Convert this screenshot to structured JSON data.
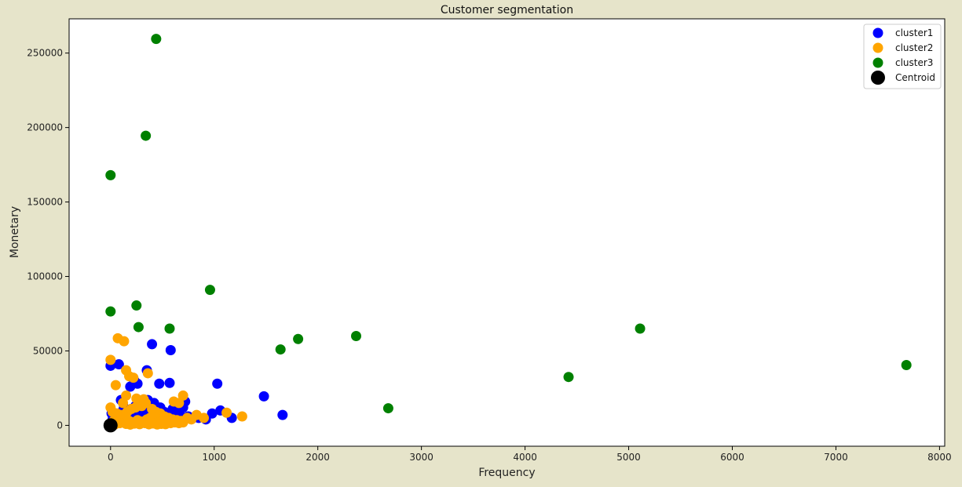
{
  "chart_data": {
    "type": "scatter",
    "title": "Customer segmentation",
    "xlabel": "Frequency",
    "ylabel": "Monetary",
    "xlim": [
      -400,
      8050
    ],
    "ylim": [
      -14000,
      273000
    ],
    "xticks": [
      0,
      1000,
      2000,
      3000,
      4000,
      5000,
      6000,
      7000,
      8000
    ],
    "yticks": [
      0,
      50000,
      100000,
      150000,
      200000,
      250000
    ],
    "grid": false,
    "legend_position": "top-right",
    "series": [
      {
        "name": "cluster1",
        "color": "#0000ff",
        "points": [
          [
            0,
            40000
          ],
          [
            80,
            41000
          ],
          [
            100,
            17000
          ],
          [
            130,
            12000
          ],
          [
            190,
            26000
          ],
          [
            230,
            30000
          ],
          [
            260,
            28000
          ],
          [
            350,
            37000
          ],
          [
            400,
            54500
          ],
          [
            470,
            28000
          ],
          [
            570,
            28500
          ],
          [
            580,
            50500
          ],
          [
            1030,
            28000
          ],
          [
            1480,
            19500
          ],
          [
            1660,
            7000
          ],
          [
            1170,
            5000
          ],
          [
            1060,
            10000
          ],
          [
            980,
            8000
          ],
          [
            920,
            4000
          ],
          [
            720,
            16000
          ],
          [
            680,
            6000
          ],
          [
            600,
            11000
          ],
          [
            520,
            9000
          ],
          [
            480,
            12000
          ],
          [
            420,
            15000
          ],
          [
            360,
            17000
          ],
          [
            320,
            14000
          ],
          [
            280,
            16000
          ],
          [
            240,
            13000
          ],
          [
            200,
            11000
          ],
          [
            160,
            9000
          ],
          [
            120,
            10000
          ],
          [
            60,
            7000
          ],
          [
            40,
            6000
          ],
          [
            20,
            4000
          ],
          [
            10,
            8000
          ],
          [
            300,
            8000
          ],
          [
            450,
            6000
          ],
          [
            550,
            7000
          ],
          [
            650,
            8000
          ],
          [
            750,
            6000
          ],
          [
            850,
            5000
          ],
          [
            500,
            4000
          ],
          [
            380,
            5000
          ],
          [
            260,
            6000
          ],
          [
            180,
            7000
          ],
          [
            140,
            5000
          ],
          [
            90,
            3000
          ],
          [
            700,
            12000
          ],
          [
            620,
            9000
          ],
          [
            340,
            11000
          ],
          [
            230,
            9000
          ]
        ]
      },
      {
        "name": "cluster2",
        "color": "#ffa500",
        "points": [
          [
            0,
            44000
          ],
          [
            50,
            27000
          ],
          [
            70,
            58500
          ],
          [
            130,
            56500
          ],
          [
            150,
            37000
          ],
          [
            180,
            33000
          ],
          [
            220,
            32000
          ],
          [
            360,
            35000
          ],
          [
            700,
            20000
          ],
          [
            660,
            15000
          ],
          [
            610,
            16000
          ],
          [
            830,
            7000
          ],
          [
            900,
            5000
          ],
          [
            1120,
            8500
          ],
          [
            1270,
            6000
          ],
          [
            0,
            12000
          ],
          [
            20,
            9000
          ],
          [
            60,
            8000
          ],
          [
            100,
            7000
          ],
          [
            140,
            6000
          ],
          [
            160,
            9000
          ],
          [
            200,
            11000
          ],
          [
            240,
            12000
          ],
          [
            270,
            16000
          ],
          [
            300,
            13000
          ],
          [
            340,
            15000
          ],
          [
            400,
            11000
          ],
          [
            440,
            9000
          ],
          [
            480,
            8000
          ],
          [
            520,
            6000
          ],
          [
            560,
            5000
          ],
          [
            600,
            4000
          ],
          [
            640,
            3500
          ],
          [
            680,
            3000
          ],
          [
            740,
            5000
          ],
          [
            780,
            4000
          ],
          [
            30,
            3000
          ],
          [
            80,
            2500
          ],
          [
            120,
            4000
          ],
          [
            180,
            3000
          ],
          [
            220,
            2000
          ],
          [
            260,
            3500
          ],
          [
            300,
            2500
          ],
          [
            350,
            4000
          ],
          [
            380,
            5000
          ],
          [
            420,
            3000
          ],
          [
            460,
            2000
          ],
          [
            500,
            3000
          ],
          [
            540,
            2500
          ],
          [
            580,
            1500
          ],
          [
            620,
            2000
          ],
          [
            660,
            1500
          ],
          [
            700,
            2000
          ],
          [
            10,
            1000
          ],
          [
            40,
            500
          ],
          [
            90,
            1500
          ],
          [
            150,
            1000
          ],
          [
            190,
            500
          ],
          [
            230,
            1200
          ],
          [
            280,
            800
          ],
          [
            330,
            1500
          ],
          [
            370,
            700
          ],
          [
            410,
            1300
          ],
          [
            450,
            600
          ],
          [
            490,
            1000
          ],
          [
            530,
            800
          ],
          [
            150,
            20000
          ],
          [
            250,
            18000
          ],
          [
            320,
            17500
          ],
          [
            120,
            15000
          ]
        ]
      },
      {
        "name": "cluster3",
        "color": "#008000",
        "points": [
          [
            440,
            259500
          ],
          [
            340,
            194500
          ],
          [
            0,
            168000
          ],
          [
            960,
            91000
          ],
          [
            0,
            76500
          ],
          [
            250,
            80500
          ],
          [
            270,
            66000
          ],
          [
            570,
            65000
          ],
          [
            1640,
            51000
          ],
          [
            1810,
            58000
          ],
          [
            2370,
            60000
          ],
          [
            2680,
            11500
          ],
          [
            4420,
            32500
          ],
          [
            5110,
            65000
          ],
          [
            7680,
            40500
          ]
        ]
      },
      {
        "name": "Centroid",
        "color": "#000000",
        "points": [
          [
            0,
            0
          ]
        ]
      }
    ]
  }
}
